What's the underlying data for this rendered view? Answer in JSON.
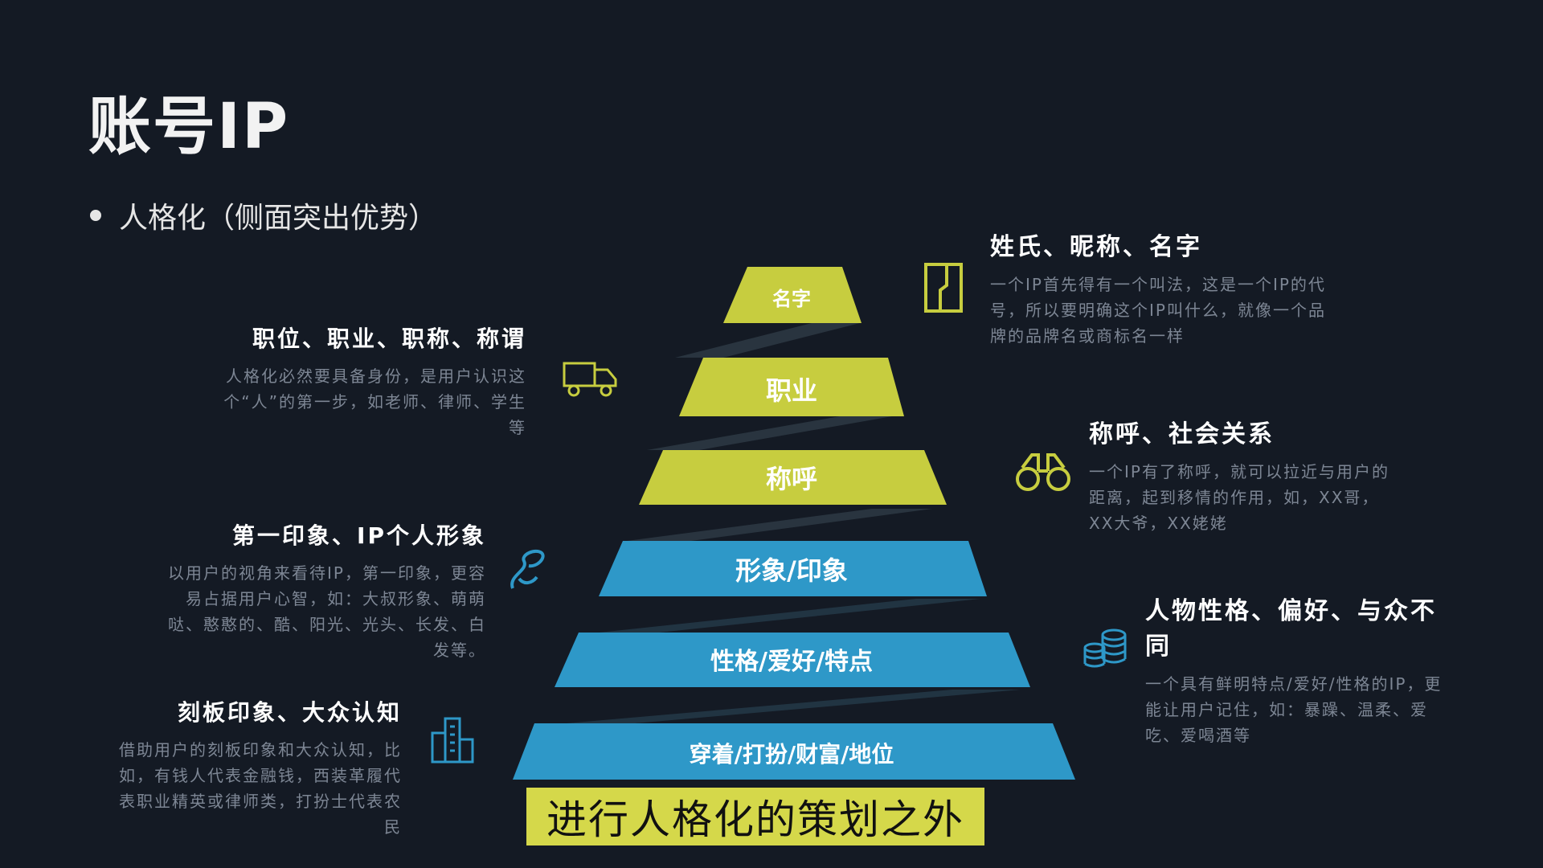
{
  "title": "账号IP",
  "bullet": "人格化（侧面突出优势）",
  "pyramid": {
    "layers": [
      {
        "label": "名字",
        "color": "#c7cd3f"
      },
      {
        "label": "职业",
        "color": "#c7cd3f"
      },
      {
        "label": "称呼",
        "color": "#c7cd3f"
      },
      {
        "label": "形象/印象",
        "color": "#2e98c8"
      },
      {
        "label": "性格/爱好/特点",
        "color": "#2e98c8"
      },
      {
        "label": "穿着/打扮/财富/地位",
        "color": "#2e98c8"
      }
    ]
  },
  "notes_right": [
    {
      "heading": "姓氏、昵称、名字",
      "body": "一个IP首先得有一个叫法，这是一个IP的代号，所以要明确这个IP叫什么，就像一个品牌的品牌名或商标名一样"
    },
    {
      "heading": "称呼、社会关系",
      "body": "一个IP有了称呼，就可以拉近与用户的距离，起到移情的作用，如，XX哥，XX大爷，XX姥姥"
    },
    {
      "heading": "人物性格、偏好、与众不同",
      "body": "一个具有鲜明特点/爱好/性格的IP，更能让用户记住，如：暴躁、温柔、爱吃、爱喝酒等"
    }
  ],
  "notes_left": [
    {
      "heading": "职位、职业、职称、称谓",
      "body": "人格化必然要具备身份，是用户认识这个“人”的第一步，如老师、律师、学生等"
    },
    {
      "heading": "第一印象、IP个人形象",
      "body": "以用户的视角来看待IP，第一印象，更容易占据用户心智，如：大叔形象、萌萌哒、憨憨的、酷、阳光、光头、长发、白发等。"
    },
    {
      "heading": "刻板印象、大众认知",
      "body": "借助用户的刻板印象和大众认知，比如，有钱人代表金融钱，西装革履代表职业精英或律师类，打扮士代表农民"
    }
  ],
  "caption": "进行人格化的策划之外",
  "colors": {
    "background": "#141a24",
    "yellow_green": "#c7cd3f",
    "blue": "#2e98c8",
    "caption_bg": "#d5d84a"
  },
  "icons": [
    "door-icon",
    "truck-icon",
    "binoculars-icon",
    "pen-icon",
    "coins-icon",
    "city-icon"
  ]
}
